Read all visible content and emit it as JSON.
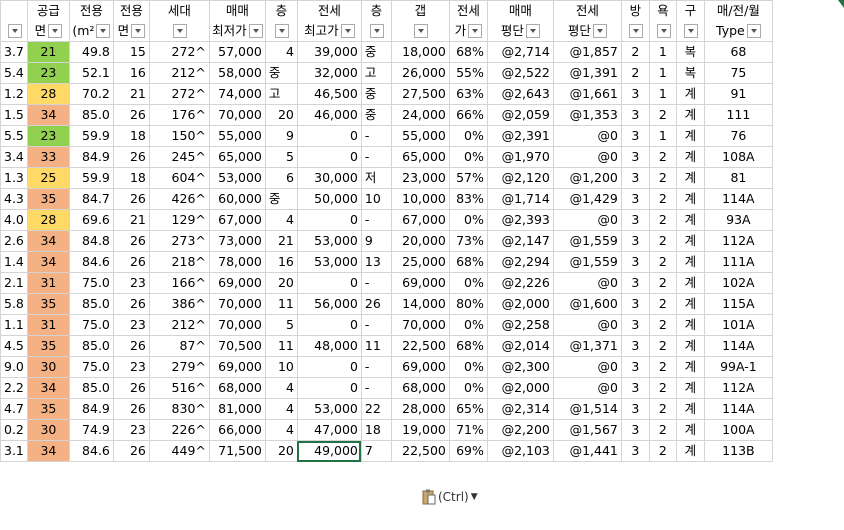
{
  "headers": [
    {
      "line1": "",
      "line2": ""
    },
    {
      "line1": "공급",
      "line2": "면"
    },
    {
      "line1": "전용",
      "line2": "(m²"
    },
    {
      "line1": "전용",
      "line2": "면"
    },
    {
      "line1": "세대",
      "line2": ""
    },
    {
      "line1": "매매",
      "line2": "최저가"
    },
    {
      "line1": "층",
      "line2": ""
    },
    {
      "line1": "전세",
      "line2": "최고가"
    },
    {
      "line1": "층",
      "line2": ""
    },
    {
      "line1": "갭",
      "line2": ""
    },
    {
      "line1": "전세",
      "line2": "가"
    },
    {
      "line1": "매매",
      "line2": "평단"
    },
    {
      "line1": "전세",
      "line2": "평단"
    },
    {
      "line1": "방",
      "line2": ""
    },
    {
      "line1": "욕",
      "line2": ""
    },
    {
      "line1": "구",
      "line2": ""
    },
    {
      "line1": "매/전/월",
      "line2": "Type"
    }
  ],
  "rows": [
    [
      "3.7",
      "21",
      "49.8",
      "15",
      "272^",
      "57,000",
      "4",
      "39,000",
      "중",
      "18,000",
      "68%",
      "@2,714",
      "@1,857",
      "2",
      "1",
      "복",
      "68"
    ],
    [
      "5.4",
      "23",
      "52.1",
      "16",
      "212^",
      "58,000",
      "중",
      "32,000",
      "고",
      "26,000",
      "55%",
      "@2,522",
      "@1,391",
      "2",
      "1",
      "복",
      "75"
    ],
    [
      "1.2",
      "28",
      "70.2",
      "21",
      "272^",
      "74,000",
      "고",
      "46,500",
      "중",
      "27,500",
      "63%",
      "@2,643",
      "@1,661",
      "3",
      "1",
      "계",
      "91"
    ],
    [
      "1.5",
      "34",
      "85.0",
      "26",
      "176^",
      "70,000",
      "20",
      "46,000",
      "중",
      "24,000",
      "66%",
      "@2,059",
      "@1,353",
      "3",
      "2",
      "계",
      "111"
    ],
    [
      "5.5",
      "23",
      "59.9",
      "18",
      "150^",
      "55,000",
      "9",
      "0",
      "-",
      "55,000",
      "0%",
      "@2,391",
      "@0",
      "3",
      "1",
      "계",
      "76"
    ],
    [
      "3.4",
      "33",
      "84.9",
      "26",
      "245^",
      "65,000",
      "5",
      "0",
      "-",
      "65,000",
      "0%",
      "@1,970",
      "@0",
      "3",
      "2",
      "계",
      "108A"
    ],
    [
      "1.3",
      "25",
      "59.9",
      "18",
      "604^",
      "53,000",
      "6",
      "30,000",
      "저",
      "23,000",
      "57%",
      "@2,120",
      "@1,200",
      "3",
      "2",
      "계",
      "81"
    ],
    [
      "4.3",
      "35",
      "84.7",
      "26",
      "426^",
      "60,000",
      "중",
      "50,000",
      "10",
      "10,000",
      "83%",
      "@1,714",
      "@1,429",
      "3",
      "2",
      "계",
      "114A"
    ],
    [
      "4.0",
      "28",
      "69.6",
      "21",
      "129^",
      "67,000",
      "4",
      "0",
      "-",
      "67,000",
      "0%",
      "@2,393",
      "@0",
      "3",
      "2",
      "계",
      "93A"
    ],
    [
      "2.6",
      "34",
      "84.8",
      "26",
      "273^",
      "73,000",
      "21",
      "53,000",
      "9",
      "20,000",
      "73%",
      "@2,147",
      "@1,559",
      "3",
      "2",
      "계",
      "112A"
    ],
    [
      "1.4",
      "34",
      "84.6",
      "26",
      "218^",
      "78,000",
      "16",
      "53,000",
      "13",
      "25,000",
      "68%",
      "@2,294",
      "@1,559",
      "3",
      "2",
      "계",
      "111A"
    ],
    [
      "2.1",
      "31",
      "75.0",
      "23",
      "166^",
      "69,000",
      "20",
      "0",
      "-",
      "69,000",
      "0%",
      "@2,226",
      "@0",
      "3",
      "2",
      "계",
      "102A"
    ],
    [
      "5.8",
      "35",
      "85.0",
      "26",
      "386^",
      "70,000",
      "11",
      "56,000",
      "26",
      "14,000",
      "80%",
      "@2,000",
      "@1,600",
      "3",
      "2",
      "계",
      "115A"
    ],
    [
      "1.1",
      "31",
      "75.0",
      "23",
      "212^",
      "70,000",
      "5",
      "0",
      "-",
      "70,000",
      "0%",
      "@2,258",
      "@0",
      "3",
      "2",
      "계",
      "101A"
    ],
    [
      "4.5",
      "35",
      "85.0",
      "26",
      "87^",
      "70,500",
      "11",
      "48,000",
      "11",
      "22,500",
      "68%",
      "@2,014",
      "@1,371",
      "3",
      "2",
      "계",
      "114A"
    ],
    [
      "9.0",
      "30",
      "75.0",
      "23",
      "279^",
      "69,000",
      "10",
      "0",
      "-",
      "69,000",
      "0%",
      "@2,300",
      "@0",
      "3",
      "2",
      "계",
      "99A-1"
    ],
    [
      "2.2",
      "34",
      "85.0",
      "26",
      "516^",
      "68,000",
      "4",
      "0",
      "-",
      "68,000",
      "0%",
      "@2,000",
      "@0",
      "3",
      "2",
      "계",
      "112A"
    ],
    [
      "4.7",
      "35",
      "84.9",
      "26",
      "830^",
      "81,000",
      "4",
      "53,000",
      "22",
      "28,000",
      "65%",
      "@2,314",
      "@1,514",
      "3",
      "2",
      "계",
      "114A"
    ],
    [
      "0.2",
      "30",
      "74.9",
      "23",
      "226^",
      "66,000",
      "4",
      "47,000",
      "18",
      "19,000",
      "71%",
      "@2,200",
      "@1,567",
      "3",
      "2",
      "계",
      "100A"
    ],
    [
      "3.1",
      "34",
      "84.6",
      "26",
      "449^",
      "71,500",
      "20",
      "49,000",
      "7",
      "22,500",
      "69%",
      "@2,103",
      "@1,441",
      "3",
      "2",
      "계",
      "113B"
    ]
  ],
  "supply_colors": {
    "21": "#92d050",
    "23": "#92d050",
    "28": "#ffd966",
    "25": "#ffd966",
    "33": "#f4b183",
    "34": "#f4b183",
    "35": "#f4b183",
    "31": "#f4b183",
    "30": "#f4b183"
  },
  "paste_options": {
    "label": "(Ctrl)",
    "icon": "clipboard-icon"
  }
}
